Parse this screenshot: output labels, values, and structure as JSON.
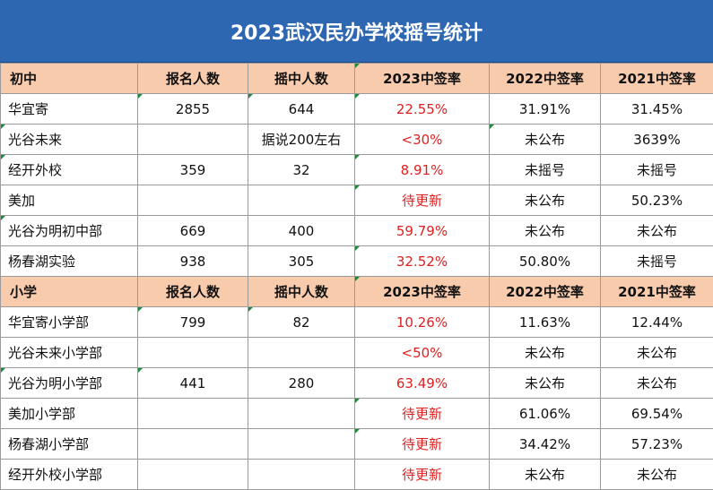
{
  "title": "2023武汉民办学校摇号统计",
  "colors": {
    "title_bg": "#2e67b1",
    "header_bg": "#f8cbad",
    "highlight_text": "#e02020"
  },
  "middle_header": [
    "初中",
    "报名人数",
    "摇中人数",
    "2023中签率",
    "2022中签率",
    "2021中签率"
  ],
  "middle_rows": [
    [
      "华宜寄",
      "2855",
      "644",
      "22.55%",
      "31.91%",
      "31.45%"
    ],
    [
      "光谷未来",
      "",
      "据说200左右",
      "<30%",
      "未公布",
      "3639%"
    ],
    [
      "经开外校",
      "359",
      "32",
      "8.91%",
      "未摇号",
      "未摇号"
    ],
    [
      "美加",
      "",
      "",
      "待更新",
      "未公布",
      "50.23%"
    ],
    [
      "光谷为明初中部",
      "669",
      "400",
      "59.79%",
      "未公布",
      "未公布"
    ],
    [
      "杨春湖实验",
      "938",
      "305",
      "32.52%",
      "50.80%",
      "未摇号"
    ]
  ],
  "primary_header": [
    "小学",
    "报名人数",
    "摇中人数",
    "2023中签率",
    "2022中签率",
    "2021中签率"
  ],
  "primary_rows": [
    [
      "华宜寄小学部",
      "799",
      "82",
      "10.26%",
      "11.63%",
      "12.44%"
    ],
    [
      "光谷未来小学部",
      "",
      "",
      "<50%",
      "未公布",
      "未公布"
    ],
    [
      "光谷为明小学部",
      "441",
      "280",
      "63.49%",
      "未公布",
      "未公布"
    ],
    [
      "美加小学部",
      "",
      "",
      "待更新",
      "61.06%",
      "69.54%"
    ],
    [
      "杨春湖小学部",
      "",
      "",
      "待更新",
      "34.42%",
      "57.23%"
    ],
    [
      "经开外校小学部",
      "",
      "",
      "待更新",
      "未公布",
      "未公布"
    ]
  ]
}
